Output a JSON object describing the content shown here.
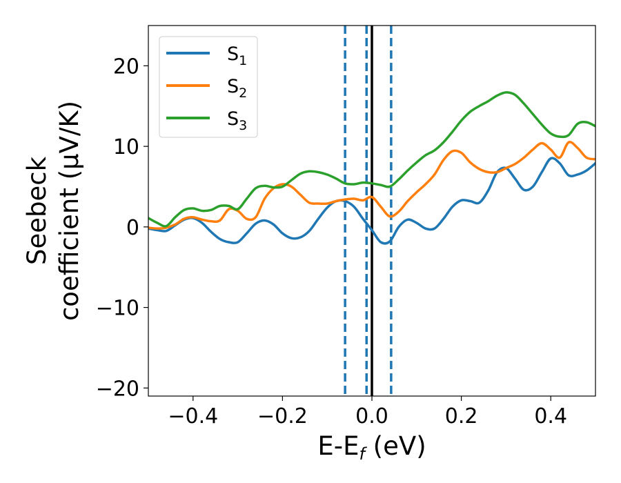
{
  "chart_data": {
    "type": "line",
    "title": "",
    "xlabel": "E-E",
    "xlabel_sub": "f",
    "xlabel_unit": " (eV)",
    "ylabel_line1": "Seebeck",
    "ylabel_line2": "coefficient  (μV/K)",
    "xlim": [
      -0.5,
      0.5
    ],
    "ylim": [
      -21,
      25
    ],
    "x_ticks": [
      -0.4,
      -0.2,
      0.0,
      0.2,
      0.4
    ],
    "x_tick_labels": [
      "−0.4",
      "−0.2",
      "0.0",
      "0.2",
      "0.4"
    ],
    "y_ticks": [
      -20,
      -10,
      0,
      10,
      20
    ],
    "y_tick_labels": [
      "−20",
      "−10",
      "0",
      "10",
      "20"
    ],
    "grid": false,
    "legend_position": "top-left",
    "vertical_lines": [
      {
        "x": -0.06,
        "style": "dashed",
        "color": "#1f77b4"
      },
      {
        "x": -0.012,
        "style": "dashed",
        "color": "#1f77b4"
      },
      {
        "x": 0.0,
        "style": "solid",
        "color": "#000000"
      },
      {
        "x": 0.043,
        "style": "dashed",
        "color": "#1f77b4"
      }
    ],
    "series": [
      {
        "name": "S",
        "sub": "1",
        "color": "#1f77b4",
        "x": [
          -0.5,
          -0.48,
          -0.46,
          -0.44,
          -0.42,
          -0.4,
          -0.38,
          -0.36,
          -0.34,
          -0.32,
          -0.3,
          -0.28,
          -0.26,
          -0.24,
          -0.22,
          -0.2,
          -0.18,
          -0.16,
          -0.14,
          -0.12,
          -0.1,
          -0.08,
          -0.06,
          -0.04,
          -0.02,
          0.0,
          0.02,
          0.04,
          0.06,
          0.08,
          0.1,
          0.12,
          0.14,
          0.16,
          0.18,
          0.2,
          0.22,
          0.24,
          0.26,
          0.28,
          0.3,
          0.32,
          0.34,
          0.36,
          0.38,
          0.4,
          0.42,
          0.44,
          0.46,
          0.48,
          0.5
        ],
        "y": [
          -0.2,
          -0.4,
          -0.5,
          0.2,
          0.9,
          1.1,
          0.5,
          -0.6,
          -1.5,
          -1.9,
          -1.9,
          -0.8,
          0.4,
          0.8,
          0.3,
          -0.8,
          -1.4,
          -1.3,
          -0.5,
          1.0,
          2.4,
          3.2,
          3.2,
          2.5,
          1.0,
          -0.4,
          -1.9,
          -1.8,
          0.0,
          0.9,
          0.5,
          -0.2,
          -0.2,
          1.0,
          2.5,
          3.3,
          3.2,
          3.0,
          4.5,
          6.8,
          7.3,
          6.0,
          4.6,
          5.0,
          6.8,
          8.5,
          7.9,
          6.4,
          6.5,
          7.0,
          7.9
        ]
      },
      {
        "name": "S",
        "sub": "2",
        "color": "#ff7f0e",
        "x": [
          -0.5,
          -0.48,
          -0.46,
          -0.44,
          -0.42,
          -0.4,
          -0.38,
          -0.36,
          -0.34,
          -0.32,
          -0.3,
          -0.28,
          -0.26,
          -0.24,
          -0.22,
          -0.2,
          -0.18,
          -0.16,
          -0.14,
          -0.12,
          -0.1,
          -0.08,
          -0.06,
          -0.04,
          -0.02,
          0.0,
          0.02,
          0.04,
          0.06,
          0.08,
          0.1,
          0.12,
          0.14,
          0.16,
          0.18,
          0.2,
          0.22,
          0.24,
          0.26,
          0.28,
          0.3,
          0.32,
          0.34,
          0.36,
          0.38,
          0.4,
          0.42,
          0.44,
          0.46,
          0.48,
          0.5
        ],
        "y": [
          -0.1,
          -0.2,
          -0.1,
          0.3,
          1.0,
          1.2,
          0.9,
          0.7,
          0.8,
          2.2,
          2.0,
          1.0,
          1.2,
          3.5,
          4.8,
          5.3,
          5.0,
          4.0,
          3.0,
          2.9,
          2.9,
          3.2,
          3.4,
          3.5,
          3.3,
          3.7,
          2.5,
          1.3,
          1.9,
          3.2,
          4.3,
          5.3,
          6.5,
          8.3,
          9.4,
          9.2,
          8.0,
          7.2,
          6.8,
          6.8,
          7.3,
          7.8,
          8.6,
          9.6,
          10.4,
          9.6,
          8.6,
          10.5,
          9.8,
          8.6,
          8.4
        ]
      },
      {
        "name": "S",
        "sub": "3",
        "color": "#2ca02c",
        "x": [
          -0.5,
          -0.48,
          -0.46,
          -0.44,
          -0.42,
          -0.4,
          -0.38,
          -0.36,
          -0.34,
          -0.32,
          -0.3,
          -0.28,
          -0.26,
          -0.24,
          -0.22,
          -0.2,
          -0.18,
          -0.16,
          -0.14,
          -0.12,
          -0.1,
          -0.08,
          -0.06,
          -0.04,
          -0.02,
          0.0,
          0.02,
          0.04,
          0.06,
          0.08,
          0.1,
          0.12,
          0.14,
          0.16,
          0.18,
          0.2,
          0.22,
          0.24,
          0.26,
          0.28,
          0.3,
          0.32,
          0.34,
          0.36,
          0.38,
          0.4,
          0.42,
          0.44,
          0.46,
          0.48,
          0.5
        ],
        "y": [
          1.1,
          0.5,
          0.1,
          1.2,
          2.1,
          2.3,
          2.0,
          2.1,
          2.6,
          2.6,
          2.2,
          3.5,
          4.8,
          5.1,
          4.9,
          5.0,
          5.8,
          6.6,
          6.9,
          6.8,
          6.5,
          6.0,
          5.4,
          5.3,
          5.5,
          5.4,
          5.2,
          5.0,
          5.9,
          7.0,
          8.0,
          8.9,
          9.5,
          10.5,
          11.8,
          13.2,
          14.3,
          15.0,
          15.6,
          16.3,
          16.7,
          16.4,
          15.3,
          14.0,
          12.7,
          11.6,
          11.2,
          11.4,
          12.8,
          13.0,
          12.5
        ]
      }
    ]
  }
}
